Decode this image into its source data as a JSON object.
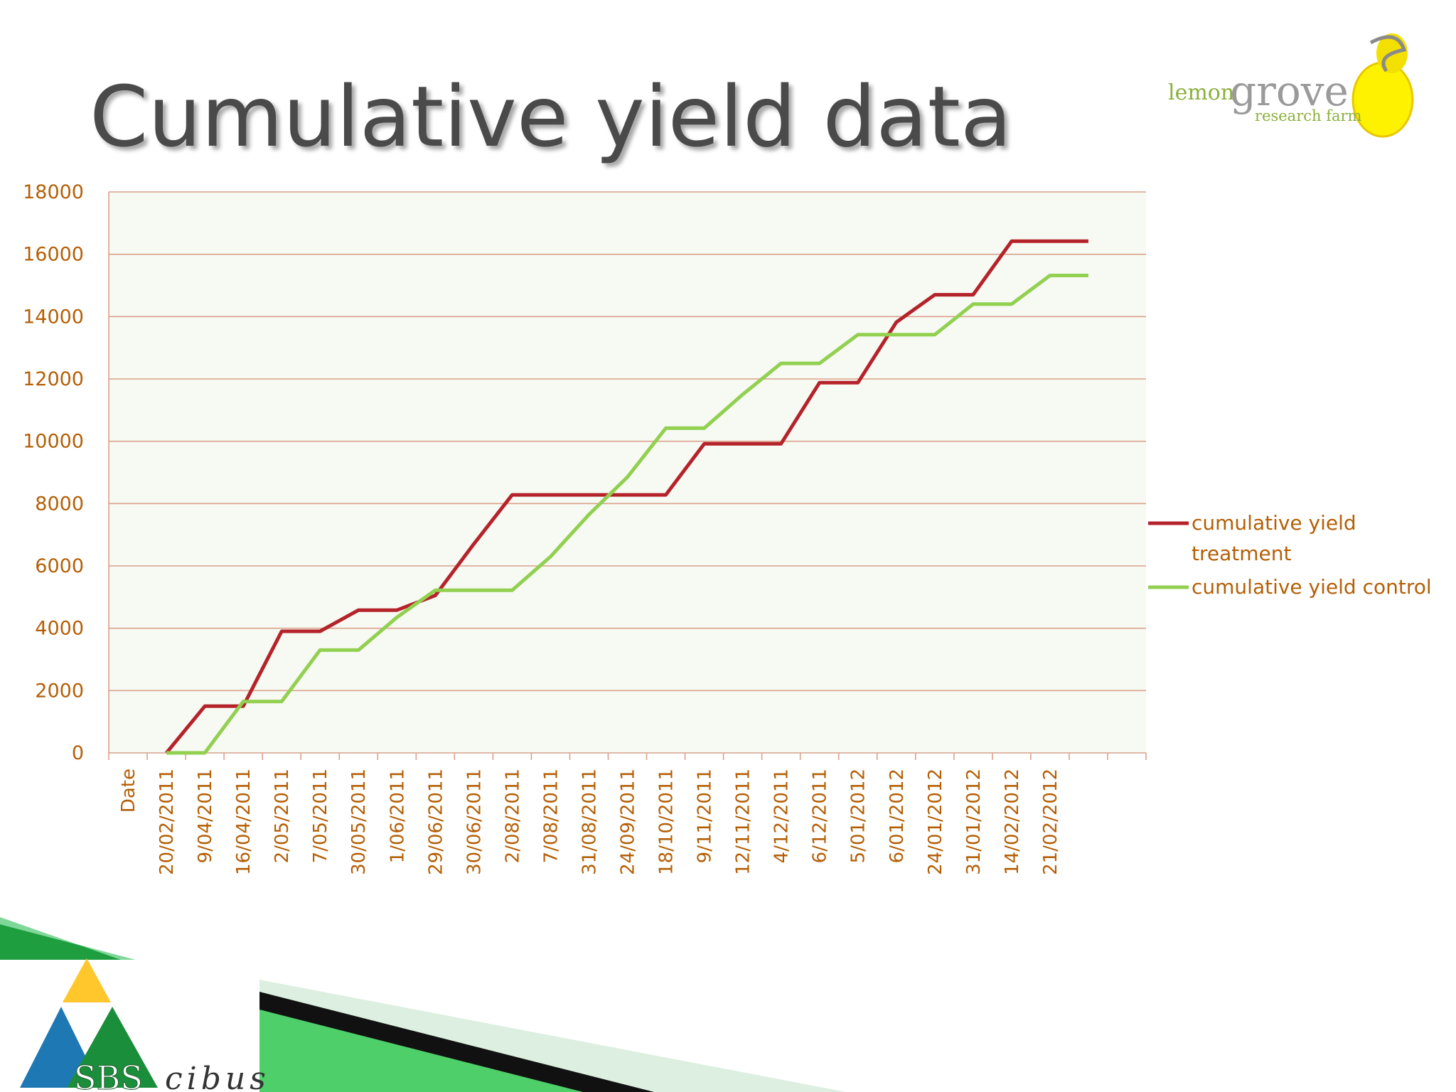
{
  "slide": {
    "title": "Cumulative yield data"
  },
  "logo_top": {
    "word1": "lemon",
    "word2": "grove",
    "sub": "research farm"
  },
  "logo_bottom": {
    "word1": "SBS",
    "word2": "cibus"
  },
  "colors": {
    "treatment": "#b5232a",
    "control": "#92d050",
    "grid": "#d9a28a",
    "tick_text": "#b45f06",
    "title": "#4a4a4a",
    "green_dark": "#1e9e3e",
    "green_light": "#66d17a",
    "logo_yellow": "#ffd21f",
    "logo_blue": "#1e78b4",
    "logo_green": "#1b8e3b"
  },
  "chart_data": {
    "type": "line",
    "categories": [
      "Date",
      "20/02/2011",
      "9/04/2011",
      "16/04/2011",
      "2/05/2011",
      "7/05/2011",
      "30/05/2011",
      "1/06/2011",
      "29/06/2011",
      "30/06/2011",
      "2/08/2011",
      "7/08/2011",
      "31/08/2011",
      "24/09/2011",
      "18/10/2011",
      "9/11/2011",
      "12/11/2011",
      "4/12/2011",
      "6/12/2011",
      "5/01/2012",
      "6/01/2012",
      "24/01/2012",
      "31/01/2012",
      "14/02/2012",
      "21/02/2012",
      "",
      ""
    ],
    "ylim": [
      0,
      18000
    ],
    "yticks": [
      0,
      2000,
      4000,
      6000,
      8000,
      10000,
      12000,
      14000,
      16000,
      18000
    ],
    "grid": true,
    "legend_position": "right",
    "series": [
      {
        "name": "cumulative  yield treatment",
        "name_lines": [
          "cumulative  yield",
          "treatment"
        ],
        "color": "#b5232a",
        "values": [
          null,
          0,
          1500,
          1500,
          3900,
          3900,
          4580,
          4580,
          5050,
          6700,
          8280,
          8280,
          8280,
          8280,
          8280,
          9920,
          9920,
          9920,
          11880,
          11880,
          13820,
          14700,
          14700,
          16420,
          16420,
          16420,
          null
        ]
      },
      {
        "name": "cumulative yield control",
        "name_lines": [
          "cumulative yield control"
        ],
        "color": "#92d050",
        "values": [
          null,
          0,
          0,
          1650,
          1650,
          3300,
          3300,
          4350,
          5220,
          5220,
          5220,
          6300,
          7650,
          8850,
          10420,
          10420,
          11500,
          12500,
          12500,
          13420,
          13420,
          13420,
          14400,
          14400,
          15320,
          15320,
          null
        ]
      }
    ]
  }
}
